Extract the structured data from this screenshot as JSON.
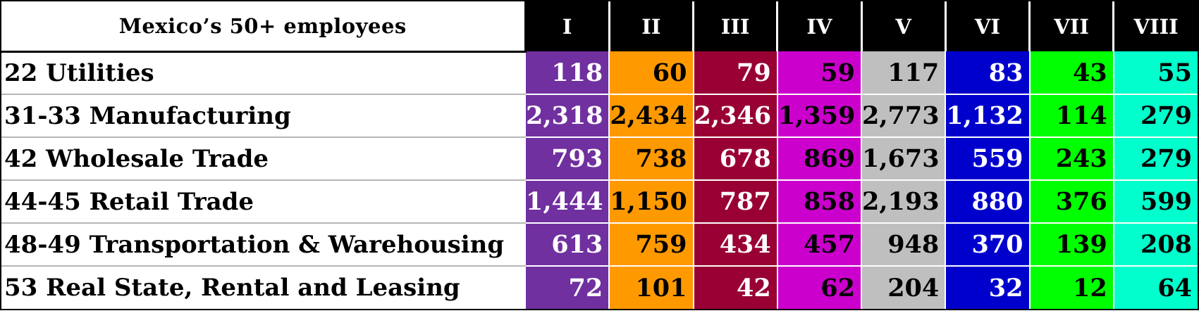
{
  "table": {
    "title": "Mexico’s 50+ employees",
    "columns": [
      {
        "label": "I",
        "bg": "#7030a0",
        "fg": "#ffffff"
      },
      {
        "label": "II",
        "bg": "#ff9900",
        "fg": "#000000"
      },
      {
        "label": "III",
        "bg": "#990033",
        "fg": "#ffffff"
      },
      {
        "label": "IV",
        "bg": "#cc00cc",
        "fg": "#000000"
      },
      {
        "label": "V",
        "bg": "#bfbfbf",
        "fg": "#000000"
      },
      {
        "label": "VI",
        "bg": "#0000cc",
        "fg": "#ffffff"
      },
      {
        "label": "VII",
        "bg": "#00ff00",
        "fg": "#000000"
      },
      {
        "label": "VIII",
        "bg": "#00ffcc",
        "fg": "#000000"
      }
    ],
    "rows": [
      {
        "label": "22 Utilities",
        "values": [
          "118",
          "60",
          "79",
          "59",
          "117",
          "83",
          "43",
          "55"
        ]
      },
      {
        "label": "31-33 Manufacturing",
        "values": [
          "2,318",
          "2,434",
          "2,346",
          "1,359",
          "2,773",
          "1,132",
          "114",
          "279"
        ]
      },
      {
        "label": "42  Wholesale Trade",
        "values": [
          "793",
          "738",
          "678",
          "869",
          "1,673",
          "559",
          "243",
          "279"
        ]
      },
      {
        "label": "44-45 Retail Trade",
        "values": [
          "1,444",
          "1,150",
          "787",
          "858",
          "2,193",
          "880",
          "376",
          "599"
        ]
      },
      {
        "label": "48-49 Transportation & Warehousing",
        "values": [
          "613",
          "759",
          "434",
          "457",
          "948",
          "370",
          "139",
          "208"
        ]
      },
      {
        "label": "53 Real State, Rental and Leasing",
        "values": [
          "72",
          "101",
          "42",
          "62",
          "204",
          "32",
          "12",
          "64"
        ]
      }
    ]
  }
}
